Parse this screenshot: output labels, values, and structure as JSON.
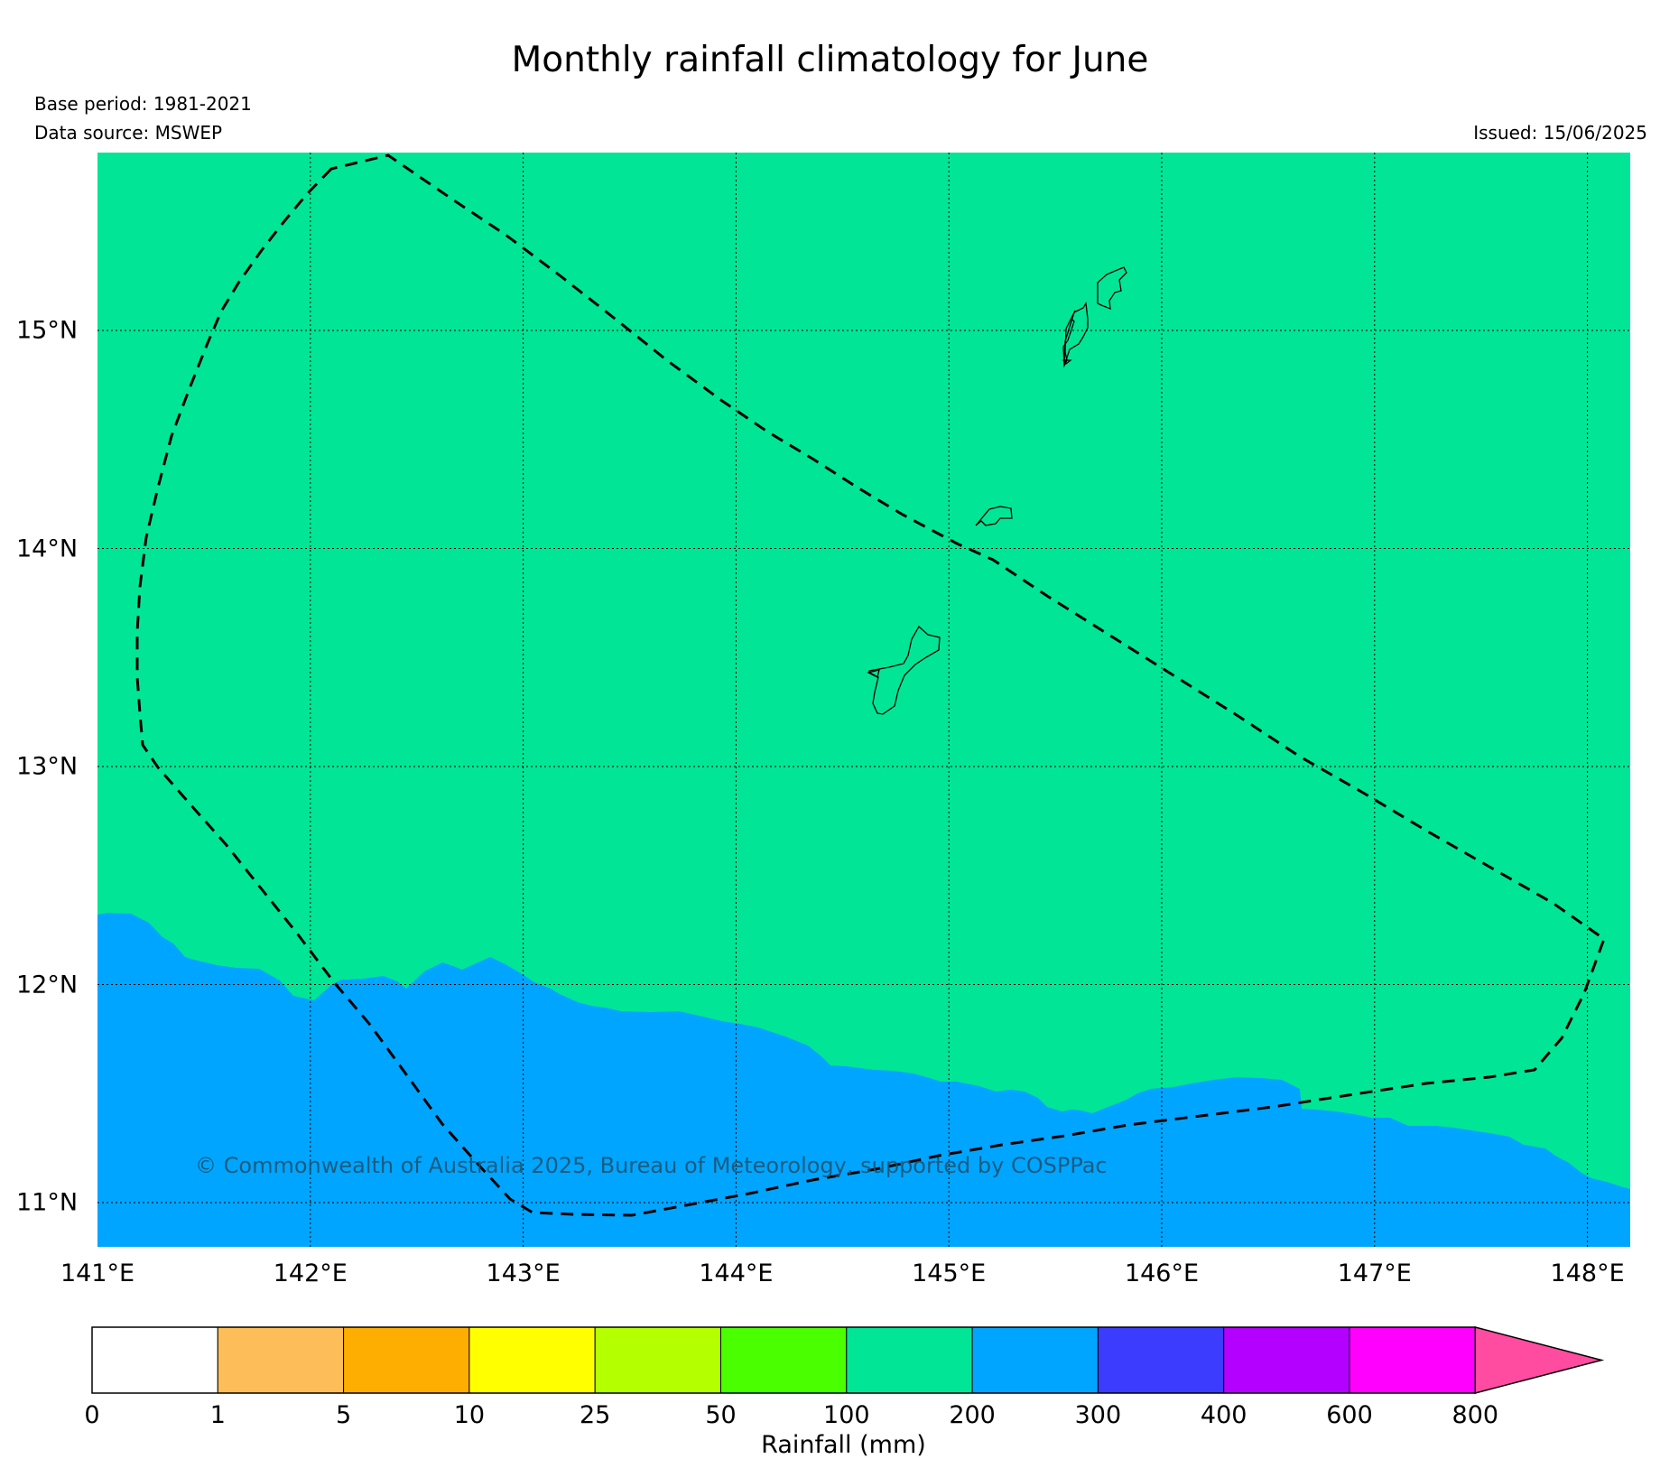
{
  "header": {
    "title": "Monthly rainfall climatology for June",
    "base_period": "Base period: 1981-2021",
    "data_source": "Data source: MSWEP",
    "issued": "Issued: 15/06/2025"
  },
  "map": {
    "lon_range": [
      141.0,
      148.2
    ],
    "lat_range": [
      10.8,
      15.82
    ],
    "x_ticks": [
      {
        "label": "141°E",
        "lon": 141
      },
      {
        "label": "142°E",
        "lon": 142
      },
      {
        "label": "143°E",
        "lon": 143
      },
      {
        "label": "144°E",
        "lon": 144
      },
      {
        "label": "145°E",
        "lon": 145
      },
      {
        "label": "146°E",
        "lon": 146
      },
      {
        "label": "147°E",
        "lon": 147
      },
      {
        "label": "148°E",
        "lon": 148
      }
    ],
    "y_ticks": [
      {
        "label": "15°N",
        "lat": 15
      },
      {
        "label": "14°N",
        "lat": 14
      },
      {
        "label": "13°N",
        "lat": 13
      },
      {
        "label": "12°N",
        "lat": 12
      },
      {
        "label": "11°N",
        "lat": 11
      }
    ],
    "regions": [
      {
        "name": "100-200 mm",
        "color": "#00e696"
      },
      {
        "name": "200-300 mm",
        "color": "#00a5ff"
      }
    ],
    "credit": "© Commonwealth of Australia 2025, Bureau of Meteorology, supported by COSPPac"
  },
  "colorbar": {
    "title": "Rainfall (mm)",
    "labels": [
      "0",
      "1",
      "5",
      "10",
      "25",
      "50",
      "100",
      "200",
      "300",
      "400",
      "600",
      "800"
    ],
    "colors": [
      "#ffffff",
      "#fdbe5a",
      "#fdae00",
      "#ffff00",
      "#b4ff00",
      "#4aff00",
      "#00e696",
      "#00a5ff",
      "#3c3cff",
      "#b400ff",
      "#ff00ff"
    ],
    "extend_color": "#ff4ba0"
  }
}
